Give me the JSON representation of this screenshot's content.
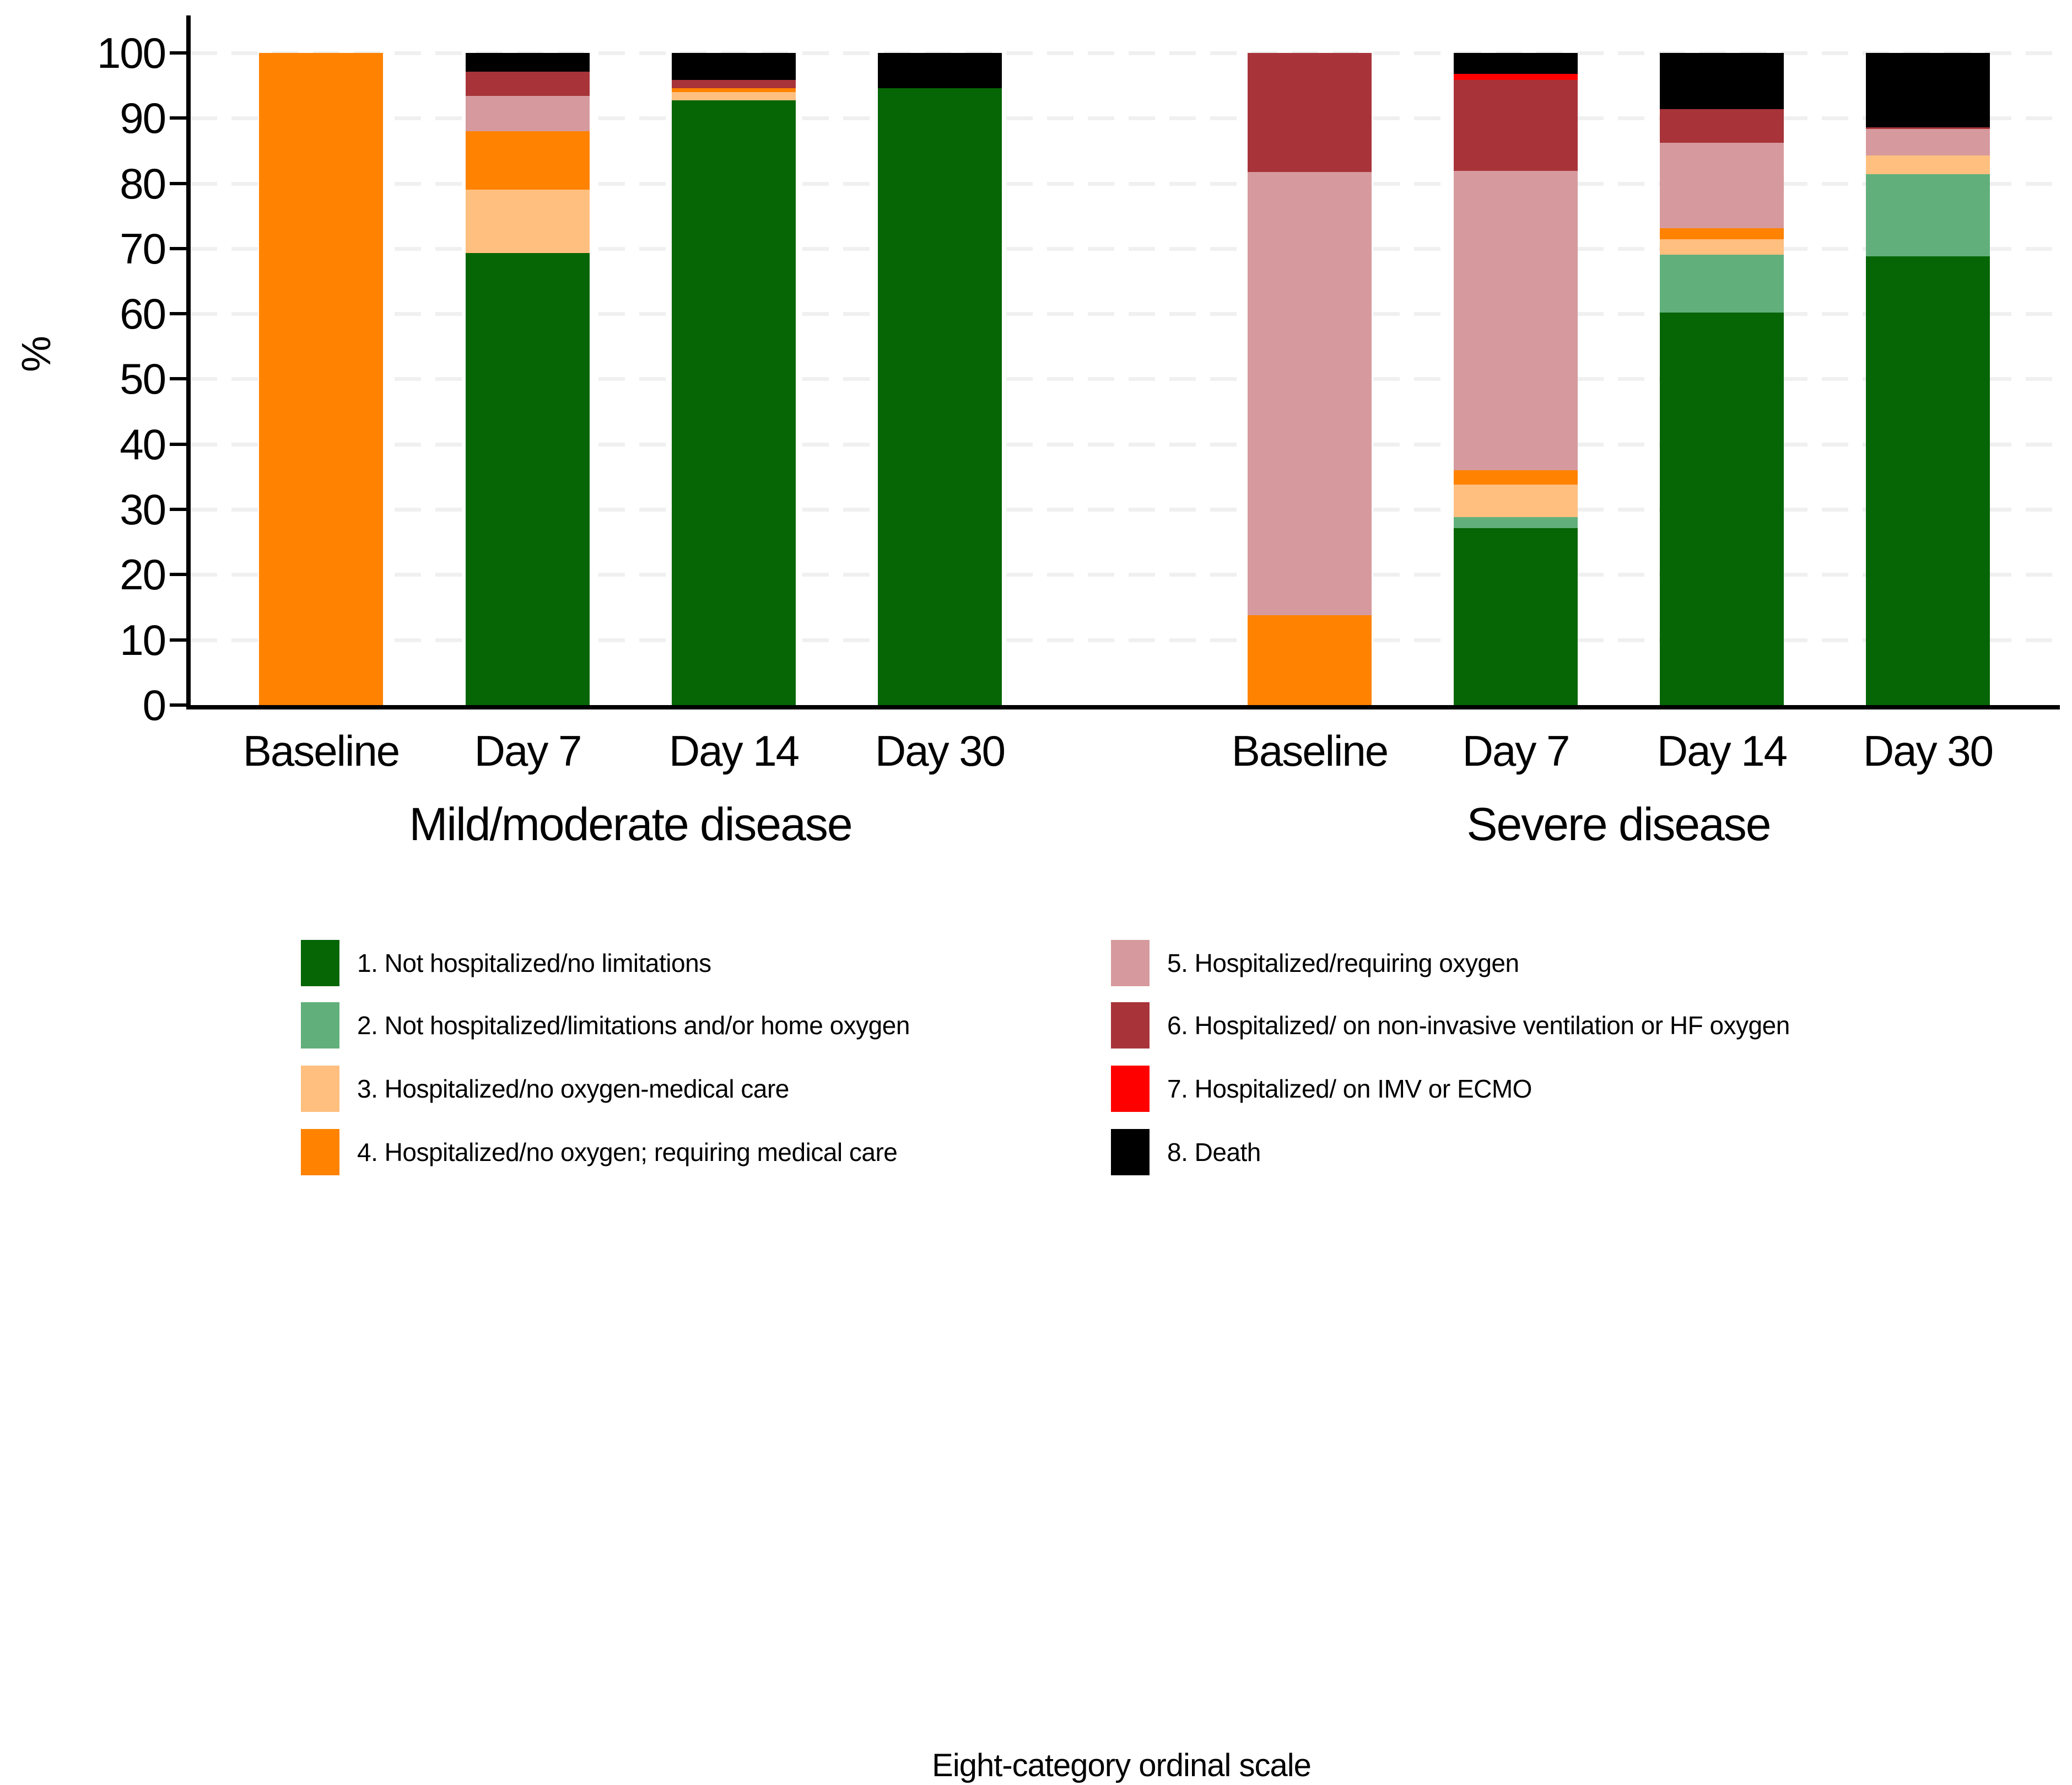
{
  "figure": {
    "background": "#ffffff"
  },
  "y_axis": {
    "title": "%",
    "ticks": [
      0,
      10,
      20,
      30,
      40,
      50,
      60,
      70,
      80,
      90,
      100
    ]
  },
  "legend": {
    "title": "Eight-category ordinal scale"
  },
  "chart_data": {
    "type": "bar",
    "stacked": true,
    "ylabel": "%",
    "ylim": [
      0,
      100
    ],
    "grid": "dashed-horizontal-light-gray",
    "legend_position": "bottom-two-columns",
    "categories": [
      {
        "id": 1,
        "label": "1. Not hospitalized/no limitations",
        "color": "#066606"
      },
      {
        "id": 2,
        "label": "2. Not hospitalized/limitations and/or home oxygen",
        "color": "#61b07c"
      },
      {
        "id": 3,
        "label": "3. Hospitalized/no oxygen-medical care",
        "color": "#ffbf7f"
      },
      {
        "id": 4,
        "label": "4. Hospitalized/no oxygen; requiring medical care",
        "color": "#ff8200"
      },
      {
        "id": 5,
        "label": "5. Hospitalized/requiring oxygen",
        "color": "#d69a9e"
      },
      {
        "id": 6,
        "label": "6. Hospitalized/ on non-invasive ventilation or HF oxygen",
        "color": "#a8343a"
      },
      {
        "id": 7,
        "label": "7. Hospitalized/ on IMV or ECMO",
        "color": "#ff0000"
      },
      {
        "id": 8,
        "label": "8. Death",
        "color": "#000000"
      }
    ],
    "groups": [
      {
        "label": "Mild/moderate disease",
        "bars": [
          {
            "label": "Baseline",
            "values": [
              0,
              0,
              0,
              100,
              0,
              0,
              0,
              0
            ]
          },
          {
            "label": "Day 7",
            "values": [
              69.3,
              0,
              9.7,
              9.0,
              5.4,
              3.7,
              0,
              2.9
            ]
          },
          {
            "label": "Day 14",
            "values": [
              92.7,
              0,
              1.3,
              0.6,
              0,
              1.3,
              0,
              4.1
            ]
          },
          {
            "label": "Day 30",
            "values": [
              94.6,
              0,
              0,
              0,
              0,
              0,
              0,
              5.4
            ]
          }
        ]
      },
      {
        "label": "Severe disease",
        "bars": [
          {
            "label": "Baseline",
            "values": [
              0,
              0,
              0,
              13.8,
              67.9,
              18.3,
              0,
              0
            ]
          },
          {
            "label": "Day 7",
            "values": [
              27.1,
              1.7,
              5.0,
              2.2,
              45.9,
              14.0,
              0.9,
              3.2
            ]
          },
          {
            "label": "Day 14",
            "values": [
              60.2,
              8.9,
              2.3,
              1.7,
              13.1,
              5.2,
              0,
              8.6
            ]
          },
          {
            "label": "Day 30",
            "values": [
              68.8,
              12.6,
              2.9,
              0,
              4.0,
              0.3,
              0,
              11.4
            ]
          }
        ]
      }
    ]
  }
}
